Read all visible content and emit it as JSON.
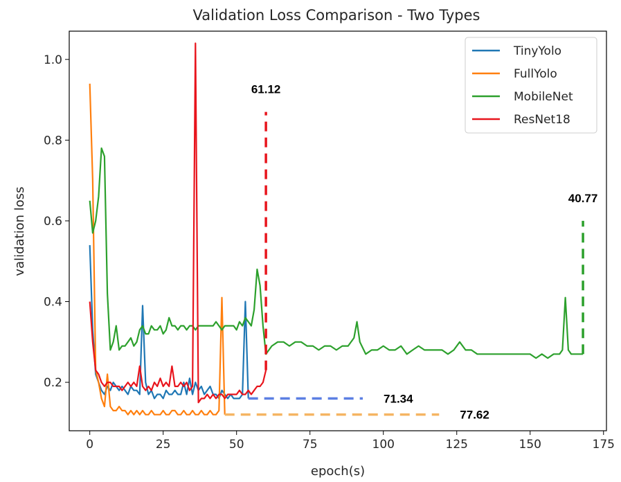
{
  "chart_data": {
    "type": "line",
    "title": "Validation Loss Comparison - Two Types",
    "xlabel": "epoch(s)",
    "ylabel": "validation loss",
    "xlim": [
      -7,
      176
    ],
    "ylim": [
      0.08,
      1.07
    ],
    "xticks": [
      0,
      25,
      50,
      75,
      100,
      125,
      150,
      175
    ],
    "xtick_labels": [
      "0",
      "25",
      "50",
      "75",
      "100",
      "125",
      "150",
      "175"
    ],
    "yticks": [
      0.2,
      0.4,
      0.6,
      0.8,
      1.0
    ],
    "ytick_labels": [
      "0.2",
      "0.4",
      "0.6",
      "0.8",
      "1.0"
    ],
    "grid": false,
    "legend_position": "top-right",
    "series": [
      {
        "name": "TinyYolo",
        "color": "#1f77b4",
        "x": [
          0,
          1,
          2,
          3,
          4,
          5,
          6,
          7,
          8,
          9,
          10,
          11,
          12,
          13,
          14,
          15,
          16,
          17,
          18,
          19,
          20,
          21,
          22,
          23,
          24,
          25,
          26,
          27,
          28,
          29,
          30,
          31,
          32,
          33,
          34,
          35,
          36,
          37,
          38,
          39,
          40,
          41,
          42,
          43,
          44,
          45,
          46,
          47,
          48,
          49,
          50,
          51,
          52,
          53,
          54
        ],
        "y": [
          0.54,
          0.33,
          0.22,
          0.2,
          0.18,
          0.17,
          0.19,
          0.18,
          0.2,
          0.19,
          0.18,
          0.19,
          0.18,
          0.17,
          0.19,
          0.18,
          0.18,
          0.17,
          0.39,
          0.2,
          0.17,
          0.18,
          0.16,
          0.17,
          0.17,
          0.16,
          0.18,
          0.17,
          0.17,
          0.18,
          0.17,
          0.17,
          0.2,
          0.17,
          0.21,
          0.17,
          0.2,
          0.18,
          0.19,
          0.17,
          0.18,
          0.19,
          0.17,
          0.17,
          0.16,
          0.18,
          0.17,
          0.16,
          0.17,
          0.16,
          0.16,
          0.16,
          0.17,
          0.4,
          0.16
        ]
      },
      {
        "name": "FullYolo",
        "color": "#ff7f0e",
        "x": [
          0,
          1,
          2,
          3,
          4,
          5,
          6,
          7,
          8,
          9,
          10,
          11,
          12,
          13,
          14,
          15,
          16,
          17,
          18,
          19,
          20,
          21,
          22,
          23,
          24,
          25,
          26,
          27,
          28,
          29,
          30,
          31,
          32,
          33,
          34,
          35,
          36,
          37,
          38,
          39,
          40,
          41,
          42,
          43,
          44,
          45,
          46
        ],
        "y": [
          0.94,
          0.7,
          0.23,
          0.2,
          0.16,
          0.14,
          0.22,
          0.14,
          0.13,
          0.13,
          0.14,
          0.13,
          0.13,
          0.12,
          0.13,
          0.12,
          0.13,
          0.12,
          0.13,
          0.12,
          0.12,
          0.13,
          0.12,
          0.12,
          0.12,
          0.13,
          0.12,
          0.12,
          0.13,
          0.13,
          0.12,
          0.12,
          0.13,
          0.12,
          0.12,
          0.13,
          0.12,
          0.12,
          0.13,
          0.12,
          0.12,
          0.13,
          0.12,
          0.12,
          0.13,
          0.41,
          0.12
        ]
      },
      {
        "name": "MobileNet",
        "color": "#2ca02c",
        "x": [
          0,
          1,
          2,
          3,
          4,
          5,
          6,
          7,
          8,
          9,
          10,
          11,
          12,
          13,
          14,
          15,
          16,
          17,
          18,
          19,
          20,
          21,
          22,
          23,
          24,
          25,
          26,
          27,
          28,
          29,
          30,
          31,
          32,
          33,
          34,
          35,
          36,
          37,
          38,
          39,
          40,
          41,
          42,
          43,
          44,
          45,
          46,
          47,
          48,
          49,
          50,
          51,
          52,
          53,
          54,
          55,
          56,
          57,
          58,
          59,
          60,
          62,
          64,
          66,
          68,
          70,
          72,
          74,
          76,
          78,
          80,
          82,
          84,
          86,
          88,
          90,
          91,
          92,
          94,
          96,
          98,
          100,
          102,
          104,
          106,
          108,
          110,
          112,
          114,
          116,
          118,
          120,
          122,
          124,
          126,
          128,
          130,
          132,
          134,
          136,
          138,
          140,
          142,
          144,
          146,
          148,
          150,
          152,
          154,
          156,
          158,
          160,
          161,
          162,
          163,
          164,
          166,
          168
        ],
        "y": [
          0.65,
          0.57,
          0.6,
          0.66,
          0.78,
          0.76,
          0.42,
          0.28,
          0.3,
          0.34,
          0.28,
          0.29,
          0.29,
          0.3,
          0.31,
          0.29,
          0.3,
          0.33,
          0.34,
          0.32,
          0.32,
          0.34,
          0.33,
          0.33,
          0.34,
          0.32,
          0.33,
          0.36,
          0.34,
          0.34,
          0.33,
          0.34,
          0.34,
          0.33,
          0.34,
          0.34,
          0.33,
          0.34,
          0.34,
          0.34,
          0.34,
          0.34,
          0.34,
          0.35,
          0.34,
          0.33,
          0.34,
          0.34,
          0.34,
          0.34,
          0.33,
          0.35,
          0.34,
          0.36,
          0.35,
          0.34,
          0.38,
          0.48,
          0.44,
          0.34,
          0.27,
          0.29,
          0.3,
          0.3,
          0.29,
          0.3,
          0.3,
          0.29,
          0.29,
          0.28,
          0.29,
          0.29,
          0.28,
          0.29,
          0.29,
          0.31,
          0.35,
          0.3,
          0.27,
          0.28,
          0.28,
          0.29,
          0.28,
          0.28,
          0.29,
          0.27,
          0.28,
          0.29,
          0.28,
          0.28,
          0.28,
          0.28,
          0.27,
          0.28,
          0.3,
          0.28,
          0.28,
          0.27,
          0.27,
          0.27,
          0.27,
          0.27,
          0.27,
          0.27,
          0.27,
          0.27,
          0.27,
          0.26,
          0.27,
          0.26,
          0.27,
          0.27,
          0.28,
          0.41,
          0.28,
          0.27,
          0.27,
          0.27
        ]
      },
      {
        "name": "ResNet18",
        "color": "#e8141c",
        "x": [
          0,
          1,
          2,
          3,
          4,
          5,
          6,
          7,
          8,
          9,
          10,
          11,
          12,
          13,
          14,
          15,
          16,
          17,
          18,
          19,
          20,
          21,
          22,
          23,
          24,
          25,
          26,
          27,
          28,
          29,
          30,
          31,
          32,
          33,
          34,
          35,
          36,
          37,
          38,
          39,
          40,
          41,
          42,
          43,
          44,
          45,
          46,
          47,
          48,
          49,
          50,
          51,
          52,
          53,
          54,
          55,
          56,
          57,
          58,
          59,
          60
        ],
        "y": [
          0.4,
          0.3,
          0.23,
          0.22,
          0.2,
          0.19,
          0.2,
          0.2,
          0.19,
          0.19,
          0.19,
          0.18,
          0.19,
          0.2,
          0.19,
          0.2,
          0.19,
          0.24,
          0.19,
          0.18,
          0.19,
          0.18,
          0.2,
          0.19,
          0.21,
          0.19,
          0.2,
          0.19,
          0.24,
          0.19,
          0.19,
          0.2,
          0.19,
          0.2,
          0.18,
          0.19,
          1.04,
          0.15,
          0.16,
          0.16,
          0.17,
          0.16,
          0.17,
          0.16,
          0.17,
          0.17,
          0.16,
          0.17,
          0.17,
          0.17,
          0.17,
          0.18,
          0.17,
          0.17,
          0.18,
          0.17,
          0.18,
          0.19,
          0.19,
          0.2,
          0.23
        ]
      }
    ],
    "annotations": [
      {
        "label": "61.12",
        "color": "#e8141c",
        "orientation": "vertical",
        "x": 60,
        "y_from": 0.23,
        "y_to": 0.87
      },
      {
        "label": "40.77",
        "color": "#2ca02c",
        "orientation": "vertical",
        "x": 168,
        "y_from": 0.27,
        "y_to": 0.6
      },
      {
        "label": "71.34",
        "color": "#5c7fe3",
        "orientation": "horizontal",
        "y": 0.16,
        "x_from": 54,
        "x_to": 93
      },
      {
        "label": "77.62",
        "color": "#f5b563",
        "orientation": "horizontal",
        "y": 0.12,
        "x_from": 46,
        "x_to": 119
      }
    ]
  }
}
